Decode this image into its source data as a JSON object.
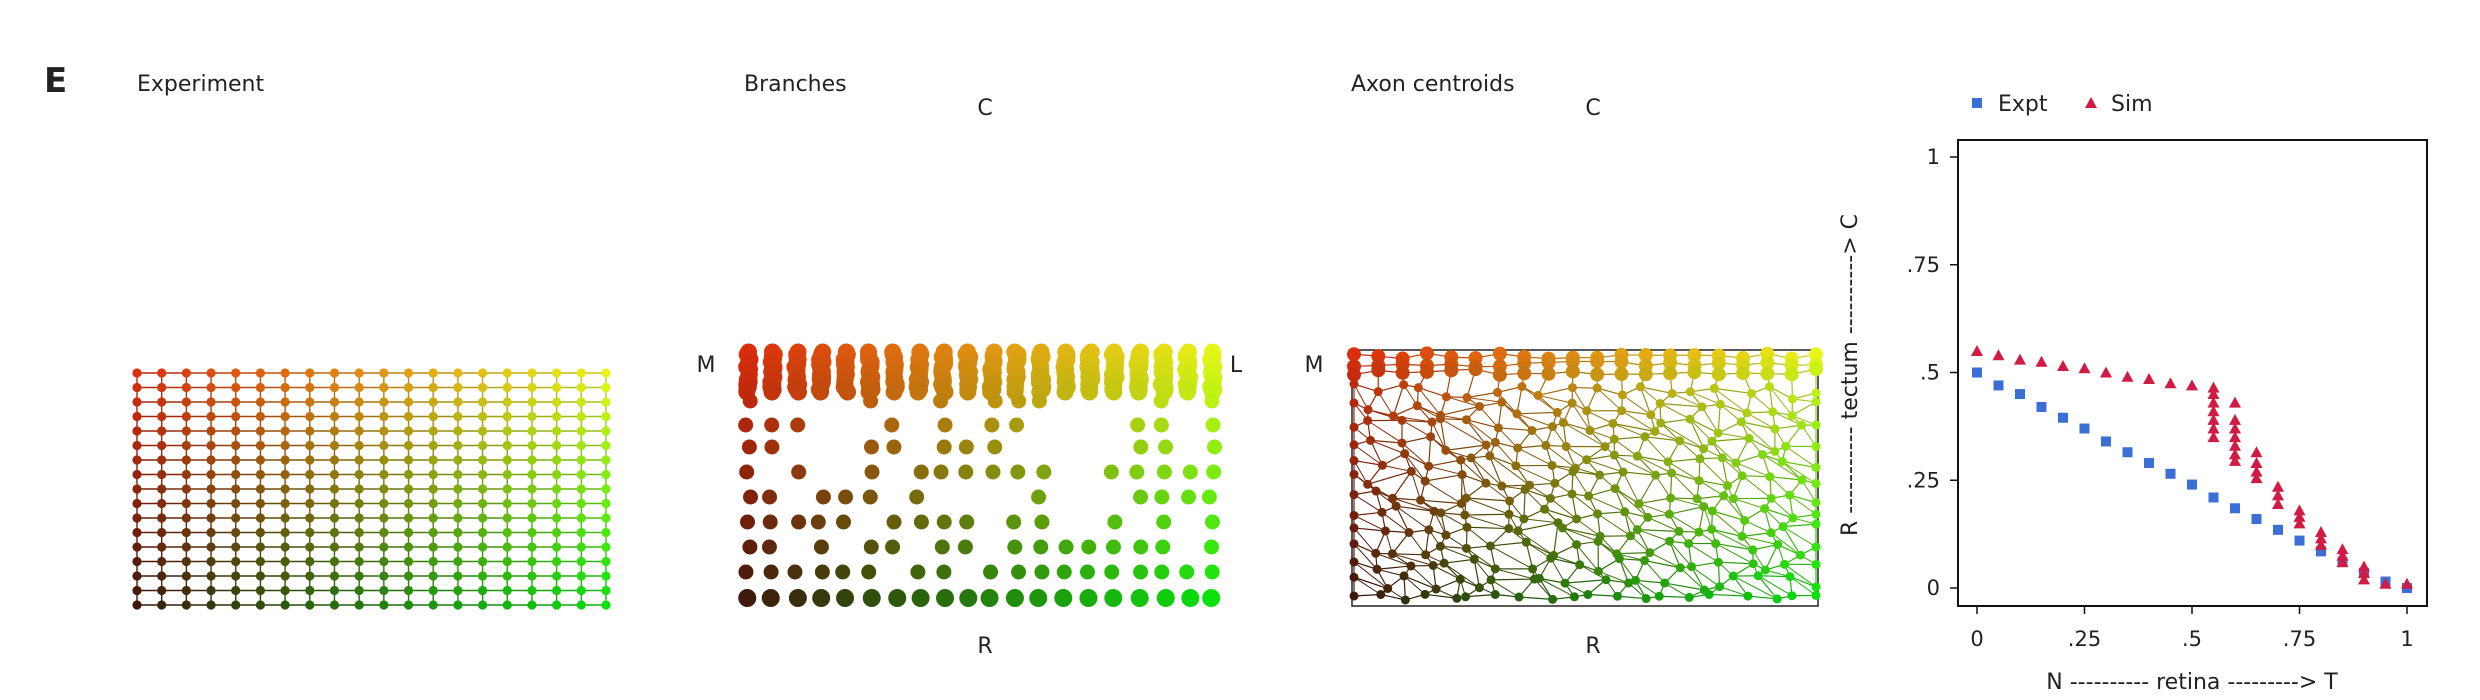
{
  "figure": {
    "panel_letter": "E",
    "panels": {
      "experiment": {
        "title": "Experiment"
      },
      "branches": {
        "title": "Branches",
        "top": "C",
        "bottom": "R",
        "left": "M",
        "right": "L"
      },
      "centroids": {
        "title": "Axon centroids",
        "top": "C",
        "bottom": "R",
        "left": "M",
        "right_axis_label": "R ----------- tectum ----------> C"
      }
    }
  },
  "chart_data": {
    "type": "scatter",
    "title": "",
    "xlabel": "N ---------- retina ---------> T",
    "ylabel": "",
    "xlim": [
      0,
      1
    ],
    "ylim": [
      0,
      1
    ],
    "xtick_labels": [
      "0",
      ".25",
      ".5",
      ".75",
      "1"
    ],
    "ytick_labels": [
      "1",
      ".75",
      ".5",
      ".25",
      "0"
    ],
    "legend_position": "top-left, above plot",
    "series": [
      {
        "name": "Expt",
        "marker": "square",
        "color": "#3b6fd6",
        "points": [
          [
            0.0,
            0.5
          ],
          [
            0.05,
            0.47
          ],
          [
            0.1,
            0.45
          ],
          [
            0.15,
            0.42
          ],
          [
            0.2,
            0.395
          ],
          [
            0.25,
            0.37
          ],
          [
            0.3,
            0.34
          ],
          [
            0.35,
            0.315
          ],
          [
            0.4,
            0.29
          ],
          [
            0.45,
            0.265
          ],
          [
            0.5,
            0.24
          ],
          [
            0.55,
            0.21
          ],
          [
            0.6,
            0.185
          ],
          [
            0.65,
            0.16
          ],
          [
            0.7,
            0.135
          ],
          [
            0.75,
            0.11
          ],
          [
            0.8,
            0.085
          ],
          [
            0.85,
            0.06
          ],
          [
            0.9,
            0.035
          ],
          [
            0.95,
            0.015
          ],
          [
            1.0,
            0.0
          ]
        ]
      },
      {
        "name": "Sim",
        "marker": "triangle",
        "color": "#d01c45",
        "points": [
          [
            0.0,
            0.55
          ],
          [
            0.05,
            0.54
          ],
          [
            0.1,
            0.53
          ],
          [
            0.15,
            0.525
          ],
          [
            0.2,
            0.515
          ],
          [
            0.25,
            0.51
          ],
          [
            0.3,
            0.5
          ],
          [
            0.35,
            0.49
          ],
          [
            0.4,
            0.485
          ],
          [
            0.45,
            0.475
          ],
          [
            0.5,
            0.47
          ],
          [
            0.55,
            0.465
          ],
          [
            0.55,
            0.45
          ],
          [
            0.55,
            0.43
          ],
          [
            0.55,
            0.41
          ],
          [
            0.55,
            0.39
          ],
          [
            0.55,
            0.37
          ],
          [
            0.55,
            0.35
          ],
          [
            0.6,
            0.43
          ],
          [
            0.6,
            0.39
          ],
          [
            0.6,
            0.37
          ],
          [
            0.6,
            0.35
          ],
          [
            0.6,
            0.33
          ],
          [
            0.6,
            0.31
          ],
          [
            0.6,
            0.295
          ],
          [
            0.65,
            0.315
          ],
          [
            0.65,
            0.29
          ],
          [
            0.65,
            0.27
          ],
          [
            0.65,
            0.255
          ],
          [
            0.7,
            0.235
          ],
          [
            0.7,
            0.215
          ],
          [
            0.7,
            0.195
          ],
          [
            0.75,
            0.18
          ],
          [
            0.75,
            0.165
          ],
          [
            0.75,
            0.15
          ],
          [
            0.8,
            0.13
          ],
          [
            0.8,
            0.115
          ],
          [
            0.8,
            0.1
          ],
          [
            0.85,
            0.09
          ],
          [
            0.85,
            0.075
          ],
          [
            0.85,
            0.06
          ],
          [
            0.9,
            0.05
          ],
          [
            0.9,
            0.035
          ],
          [
            0.9,
            0.02
          ],
          [
            0.95,
            0.01
          ],
          [
            1.0,
            0.01
          ]
        ]
      }
    ]
  }
}
